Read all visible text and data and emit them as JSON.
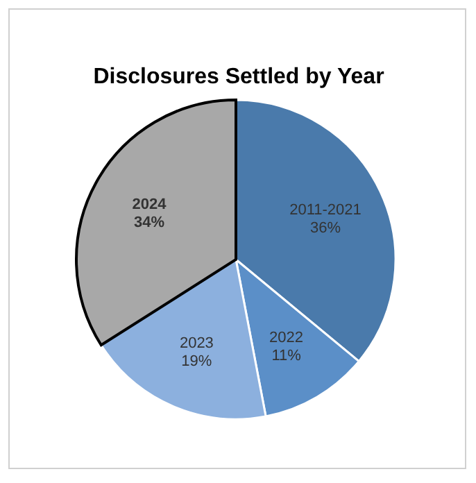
{
  "chart_data": {
    "type": "pie",
    "title": "Disclosures Settled by Year",
    "categories": [
      "2011-2021",
      "2022",
      "2023",
      "2024"
    ],
    "values": [
      36,
      11,
      19,
      34
    ],
    "value_labels": [
      "36%",
      "11%",
      "19%",
      "34%"
    ],
    "colors": [
      "#4a7aab",
      "#5b8fc8",
      "#8cb0de",
      "#a8a8a8"
    ]
  }
}
